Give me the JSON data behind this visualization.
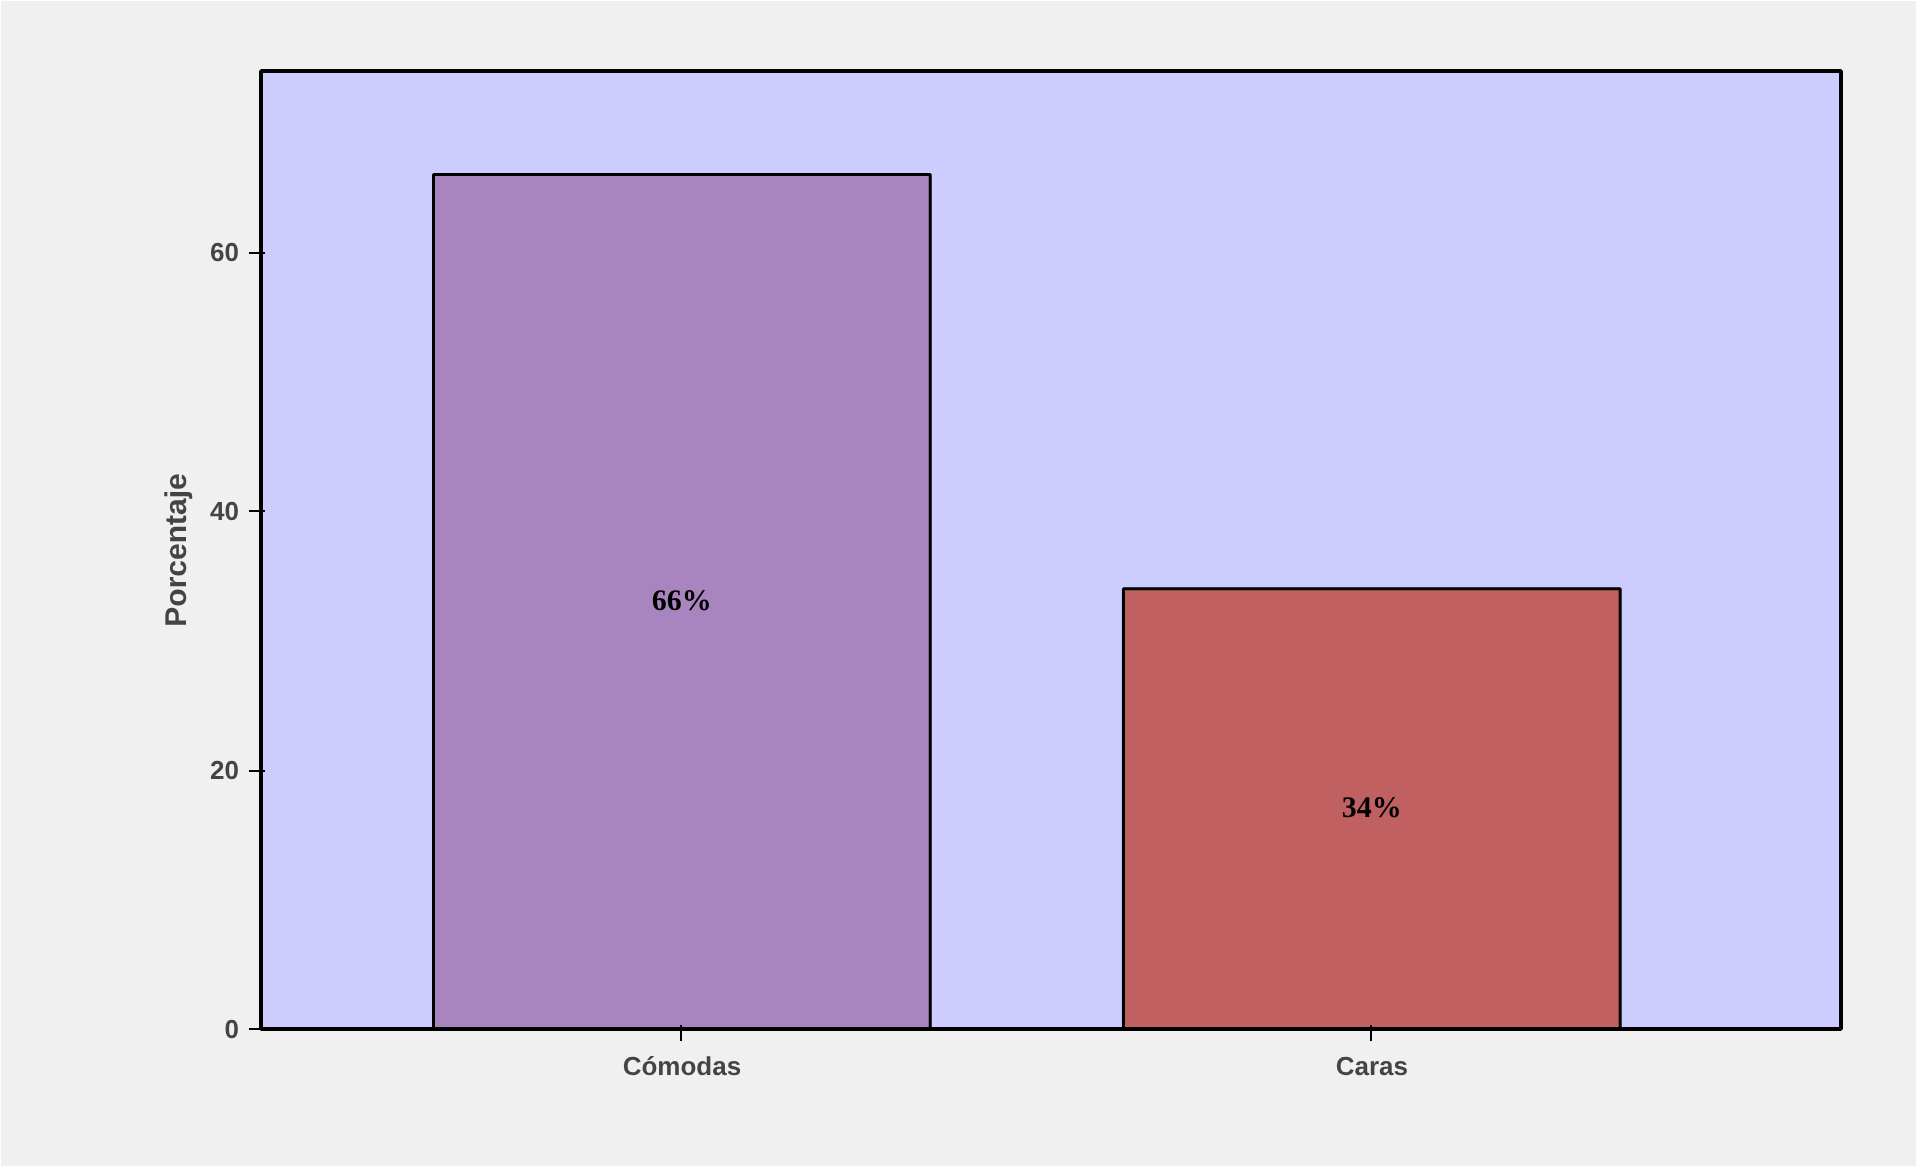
{
  "chart_data": {
    "type": "bar",
    "ylabel": "Porcentaje",
    "categories": [
      "Cómodas",
      "Caras"
    ],
    "values": [
      66,
      34
    ],
    "colors": [
      "#a985c0",
      "#c06060"
    ],
    "value_labels": [
      "66%",
      "34%"
    ],
    "ylim": [
      0,
      74
    ],
    "yticks": [
      0,
      20,
      40,
      60
    ],
    "grid": false
  }
}
